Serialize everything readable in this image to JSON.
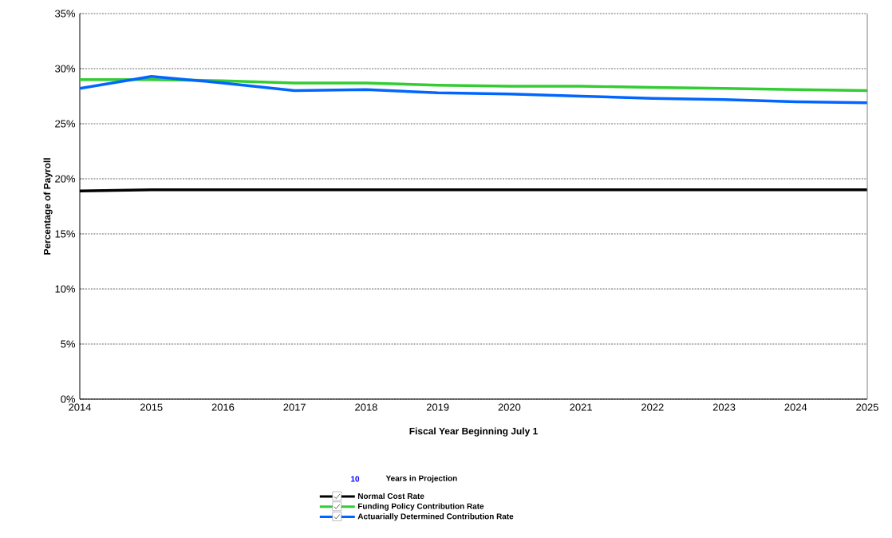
{
  "chart_data": {
    "type": "line",
    "xlabel": "Fiscal Year Beginning July 1",
    "ylabel": "Percentage of Payroll",
    "x": [
      2014,
      2015,
      2016,
      2017,
      2018,
      2019,
      2020,
      2021,
      2022,
      2023,
      2024,
      2025
    ],
    "series": [
      {
        "name": "Normal Cost Rate",
        "color": "#000000",
        "values": [
          18.9,
          19.0,
          19.0,
          19.0,
          19.0,
          19.0,
          19.0,
          19.0,
          19.0,
          19.0,
          19.0,
          19.0
        ]
      },
      {
        "name": "Funding Policy Contribution Rate",
        "color": "#33cc33",
        "values": [
          29.0,
          29.0,
          28.9,
          28.7,
          28.7,
          28.5,
          28.4,
          28.4,
          28.3,
          28.2,
          28.1,
          28.0
        ]
      },
      {
        "name": "Actuarially Determined Contribution Rate",
        "color": "#0066ff",
        "values": [
          28.2,
          29.3,
          28.7,
          28.0,
          28.1,
          27.8,
          27.7,
          27.5,
          27.3,
          27.2,
          27.0,
          26.9
        ]
      }
    ],
    "xlim": [
      2014,
      2025
    ],
    "xticks": [
      2014,
      2015,
      2016,
      2017,
      2018,
      2019,
      2020,
      2021,
      2022,
      2023,
      2024,
      2025
    ],
    "ylim": [
      0,
      35
    ],
    "yticks": [
      {
        "value": 0,
        "label": "0%"
      },
      {
        "value": 5,
        "label": "5%"
      },
      {
        "value": 10,
        "label": "10%"
      },
      {
        "value": 15,
        "label": "15%"
      },
      {
        "value": 20,
        "label": "20%"
      },
      {
        "value": 25,
        "label": "25%"
      },
      {
        "value": 30,
        "label": "30%"
      },
      {
        "value": 35,
        "label": "35%"
      }
    ],
    "grid": "y",
    "legend": "bottom",
    "marker": "none",
    "line_style": "solid",
    "annotations": [
      "10",
      "Years in Projection"
    ]
  }
}
